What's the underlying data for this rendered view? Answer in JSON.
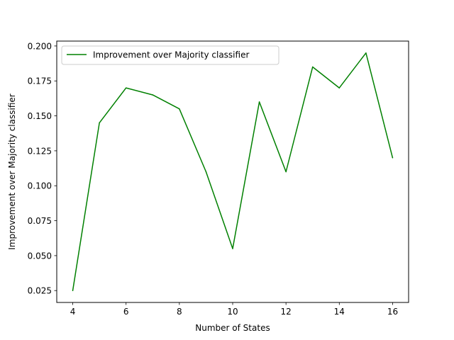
{
  "chart_data": {
    "type": "line",
    "title": "",
    "xlabel": "Number of States",
    "ylabel": "Improvement over Majority classifier",
    "xlim": [
      3.4,
      16.6
    ],
    "ylim": [
      0.0165,
      0.2035
    ],
    "xticks": [
      4,
      6,
      8,
      10,
      12,
      14,
      16
    ],
    "xtick_labels": [
      "4",
      "6",
      "8",
      "10",
      "12",
      "14",
      "16"
    ],
    "yticks": [
      0.025,
      0.05,
      0.075,
      0.1,
      0.125,
      0.15,
      0.175,
      0.2
    ],
    "ytick_labels": [
      "0.025",
      "0.050",
      "0.075",
      "0.100",
      "0.125",
      "0.150",
      "0.175",
      "0.200"
    ],
    "grid": false,
    "legend_position": "upper left",
    "x": [
      4,
      5,
      6,
      7,
      8,
      9,
      10,
      11,
      12,
      13,
      14,
      15,
      16
    ],
    "series": [
      {
        "name": "Improvement over Majority classifier",
        "color": "#008000",
        "values": [
          0.025,
          0.145,
          0.17,
          0.165,
          0.155,
          0.11,
          0.055,
          0.16,
          0.11,
          0.185,
          0.17,
          0.195,
          0.12
        ]
      }
    ]
  }
}
